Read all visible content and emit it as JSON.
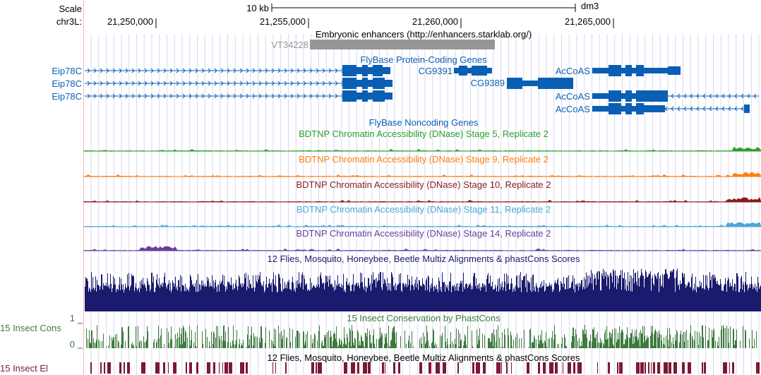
{
  "ruler": {
    "scale_label": "Scale",
    "scale_bar_label": "10 kb",
    "assembly": "dm3",
    "chrom_label": "chr3L:",
    "positions": [
      {
        "label": "21,250,000",
        "pos": 21250000
      },
      {
        "label": "21,255,000",
        "pos": 21255000
      },
      {
        "label": "21,260,000",
        "pos": 21260000
      },
      {
        "label": "21,265,000",
        "pos": 21265000
      }
    ]
  },
  "colors": {
    "gene": "#0a5fb4",
    "enhancer": "#969696",
    "stage5": "#2ca02c",
    "stage9": "#ff7f0e",
    "stage10": "#8b1a1a",
    "stage11": "#4ba6d6",
    "stage14": "#6a3d9a",
    "multiz": "#1a1a6e",
    "phastcons": "#3d7a3d",
    "elements": "#7a1a32",
    "gridline": "#d7d7f5",
    "highlight_edge": "#f4b9b9"
  },
  "tracks": {
    "enhancers": {
      "title": "Embryonic enhancers (http://enhancers.starklab.org/)",
      "feature": "VT34228"
    },
    "protein_coding": {
      "title": "FlyBase Protein-Coding Genes",
      "genes": [
        {
          "label": "Eip78C",
          "name": "eip78c-1"
        },
        {
          "label": "Eip78C",
          "name": "eip78c-2"
        },
        {
          "label": "Eip78C",
          "name": "eip78c-3"
        },
        {
          "label": "CG9391",
          "name": "cg9391"
        },
        {
          "label": "CG9389",
          "name": "cg9389"
        },
        {
          "label": "AcCoAS",
          "name": "accoas-1"
        },
        {
          "label": "AcCoAS",
          "name": "accoas-2"
        },
        {
          "label": "AcCoAS",
          "name": "accoas-3"
        }
      ]
    },
    "noncoding": {
      "title": "FlyBase Noncoding Genes"
    },
    "dnase": [
      {
        "title": "BDTNP Chromatin Accessibility (DNase) Stage 5, Replicate 2",
        "color_key": "stage5"
      },
      {
        "title": "BDTNP Chromatin Accessibility (DNase) Stage 9, Replicate 2",
        "color_key": "stage9"
      },
      {
        "title": "BDTNP Chromatin Accessibility (DNase) Stage 10, Replicate 2",
        "color_key": "stage10"
      },
      {
        "title": "BDTNP Chromatin Accessibility (DNase) Stage 11, Replicate 2",
        "color_key": "stage11"
      },
      {
        "title": "BDTNP Chromatin Accessibility (DNase) Stage 14, Replicate 2",
        "color_key": "stage14"
      }
    ],
    "multiz": {
      "title": "12 Flies, Mosquito, Honeybee, Beetle Multiz Alignments & phastCons Scores"
    },
    "phastcons": {
      "title": "15 Insect Conservation by PhastCons",
      "side_label": "15 Insect Cons",
      "max_label": "1",
      "min_label": "0"
    },
    "elements": {
      "title": "12 Flies, Mosquito, Honeybee, Beetle Multiz Alignments & phastCons Scores",
      "side_label": "15 Insect El"
    }
  }
}
